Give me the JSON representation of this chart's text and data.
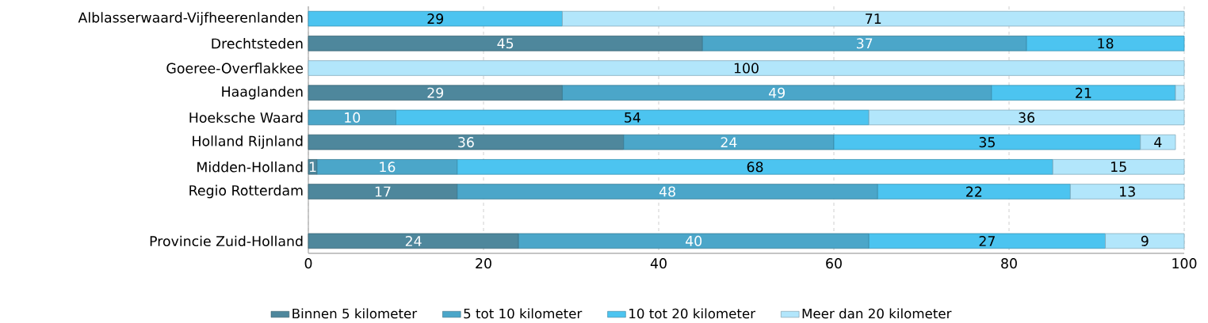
{
  "chart_data": {
    "type": "bar",
    "orientation": "horizontal",
    "stacked": true,
    "categories": [
      "Alblasserwaard-Vijfheerenlanden",
      "Drechtsteden",
      "Goeree-Overflakkee",
      "Haaglanden",
      "Hoeksche Waard",
      "Holland Rijnland",
      "Midden-Holland",
      "Regio Rotterdam",
      null,
      "Provincie Zuid-Holland"
    ],
    "series": [
      {
        "name": "Binnen 5 kilometer",
        "color": "#4e879c",
        "values": [
          null,
          45,
          null,
          29,
          null,
          36,
          1,
          17,
          null,
          24
        ],
        "value_labels": [
          null,
          "45",
          null,
          "29",
          null,
          "36",
          "1",
          "17",
          null,
          "24"
        ]
      },
      {
        "name": "5 tot 10 kilometer",
        "color": "#4ba6c9",
        "values": [
          null,
          37,
          null,
          49,
          10,
          24,
          16,
          48,
          null,
          40
        ],
        "value_labels": [
          null,
          "37",
          null,
          "49",
          "10",
          "24",
          "16",
          "48",
          null,
          "40"
        ]
      },
      {
        "name": "10 tot 20 kilometer",
        "color": "#4cc4f0",
        "values": [
          29,
          18,
          null,
          21,
          54,
          35,
          68,
          22,
          null,
          27
        ],
        "value_labels": [
          "29",
          "18",
          null,
          "21",
          "54",
          "35",
          "68",
          "22",
          null,
          "27"
        ]
      },
      {
        "name": "Meer dan 20 kilometer",
        "color": "#b2e6fb",
        "values": [
          71,
          null,
          100,
          1,
          36,
          4,
          15,
          13,
          null,
          9
        ],
        "value_labels": [
          "71",
          null,
          "100",
          null,
          "36",
          "4",
          "15",
          "13",
          null,
          "9"
        ]
      }
    ],
    "xlim": [
      0,
      100
    ],
    "xticks": [
      0,
      20,
      40,
      60,
      80,
      100
    ],
    "grid": "x",
    "legend": "bottom"
  }
}
